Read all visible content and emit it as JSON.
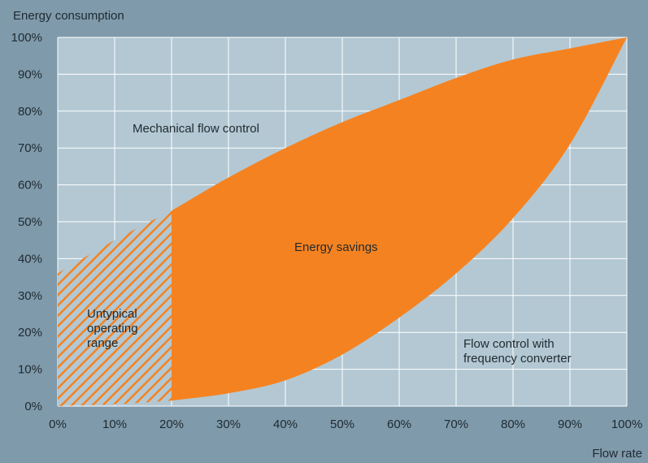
{
  "chart_data": {
    "type": "area",
    "ylabel": "Energy consumption",
    "xlabel": "Flow rate",
    "xlim": [
      0,
      100
    ],
    "ylim": [
      0,
      100
    ],
    "grid": true,
    "x_ticks": [
      "0%",
      "10%",
      "20%",
      "30%",
      "40%",
      "50%",
      "60%",
      "70%",
      "80%",
      "90%",
      "100%"
    ],
    "y_ticks": [
      "0%",
      "10%",
      "20%",
      "30%",
      "40%",
      "50%",
      "60%",
      "70%",
      "80%",
      "90%",
      "100%"
    ],
    "series": [
      {
        "name": "Mechanical flow control",
        "x": [
          0,
          10,
          20,
          30,
          40,
          50,
          60,
          70,
          80,
          90,
          100
        ],
        "values": [
          36,
          45,
          53,
          62,
          70,
          77,
          83,
          89,
          94,
          97,
          100
        ]
      },
      {
        "name": "Flow control with frequency converter",
        "x": [
          0,
          10,
          20,
          30,
          40,
          50,
          60,
          70,
          80,
          90,
          100
        ],
        "values": [
          0,
          0.5,
          1.5,
          3.5,
          7,
          14,
          24,
          36,
          51,
          71,
          100
        ]
      }
    ],
    "untypical_range": [
      0,
      20
    ],
    "annotations": {
      "mechanical": "Mechanical flow control",
      "savings": "Energy savings",
      "untypical": [
        "Untypical",
        "operating",
        "range"
      ],
      "converter": [
        "Flow control with",
        "frequency converter"
      ]
    },
    "colors": {
      "background": "#7f9aab",
      "plot_area": "#b3c8d3",
      "grid": "#ffffff",
      "savings_fill": "#f58220",
      "hatch": "#f58220"
    }
  }
}
